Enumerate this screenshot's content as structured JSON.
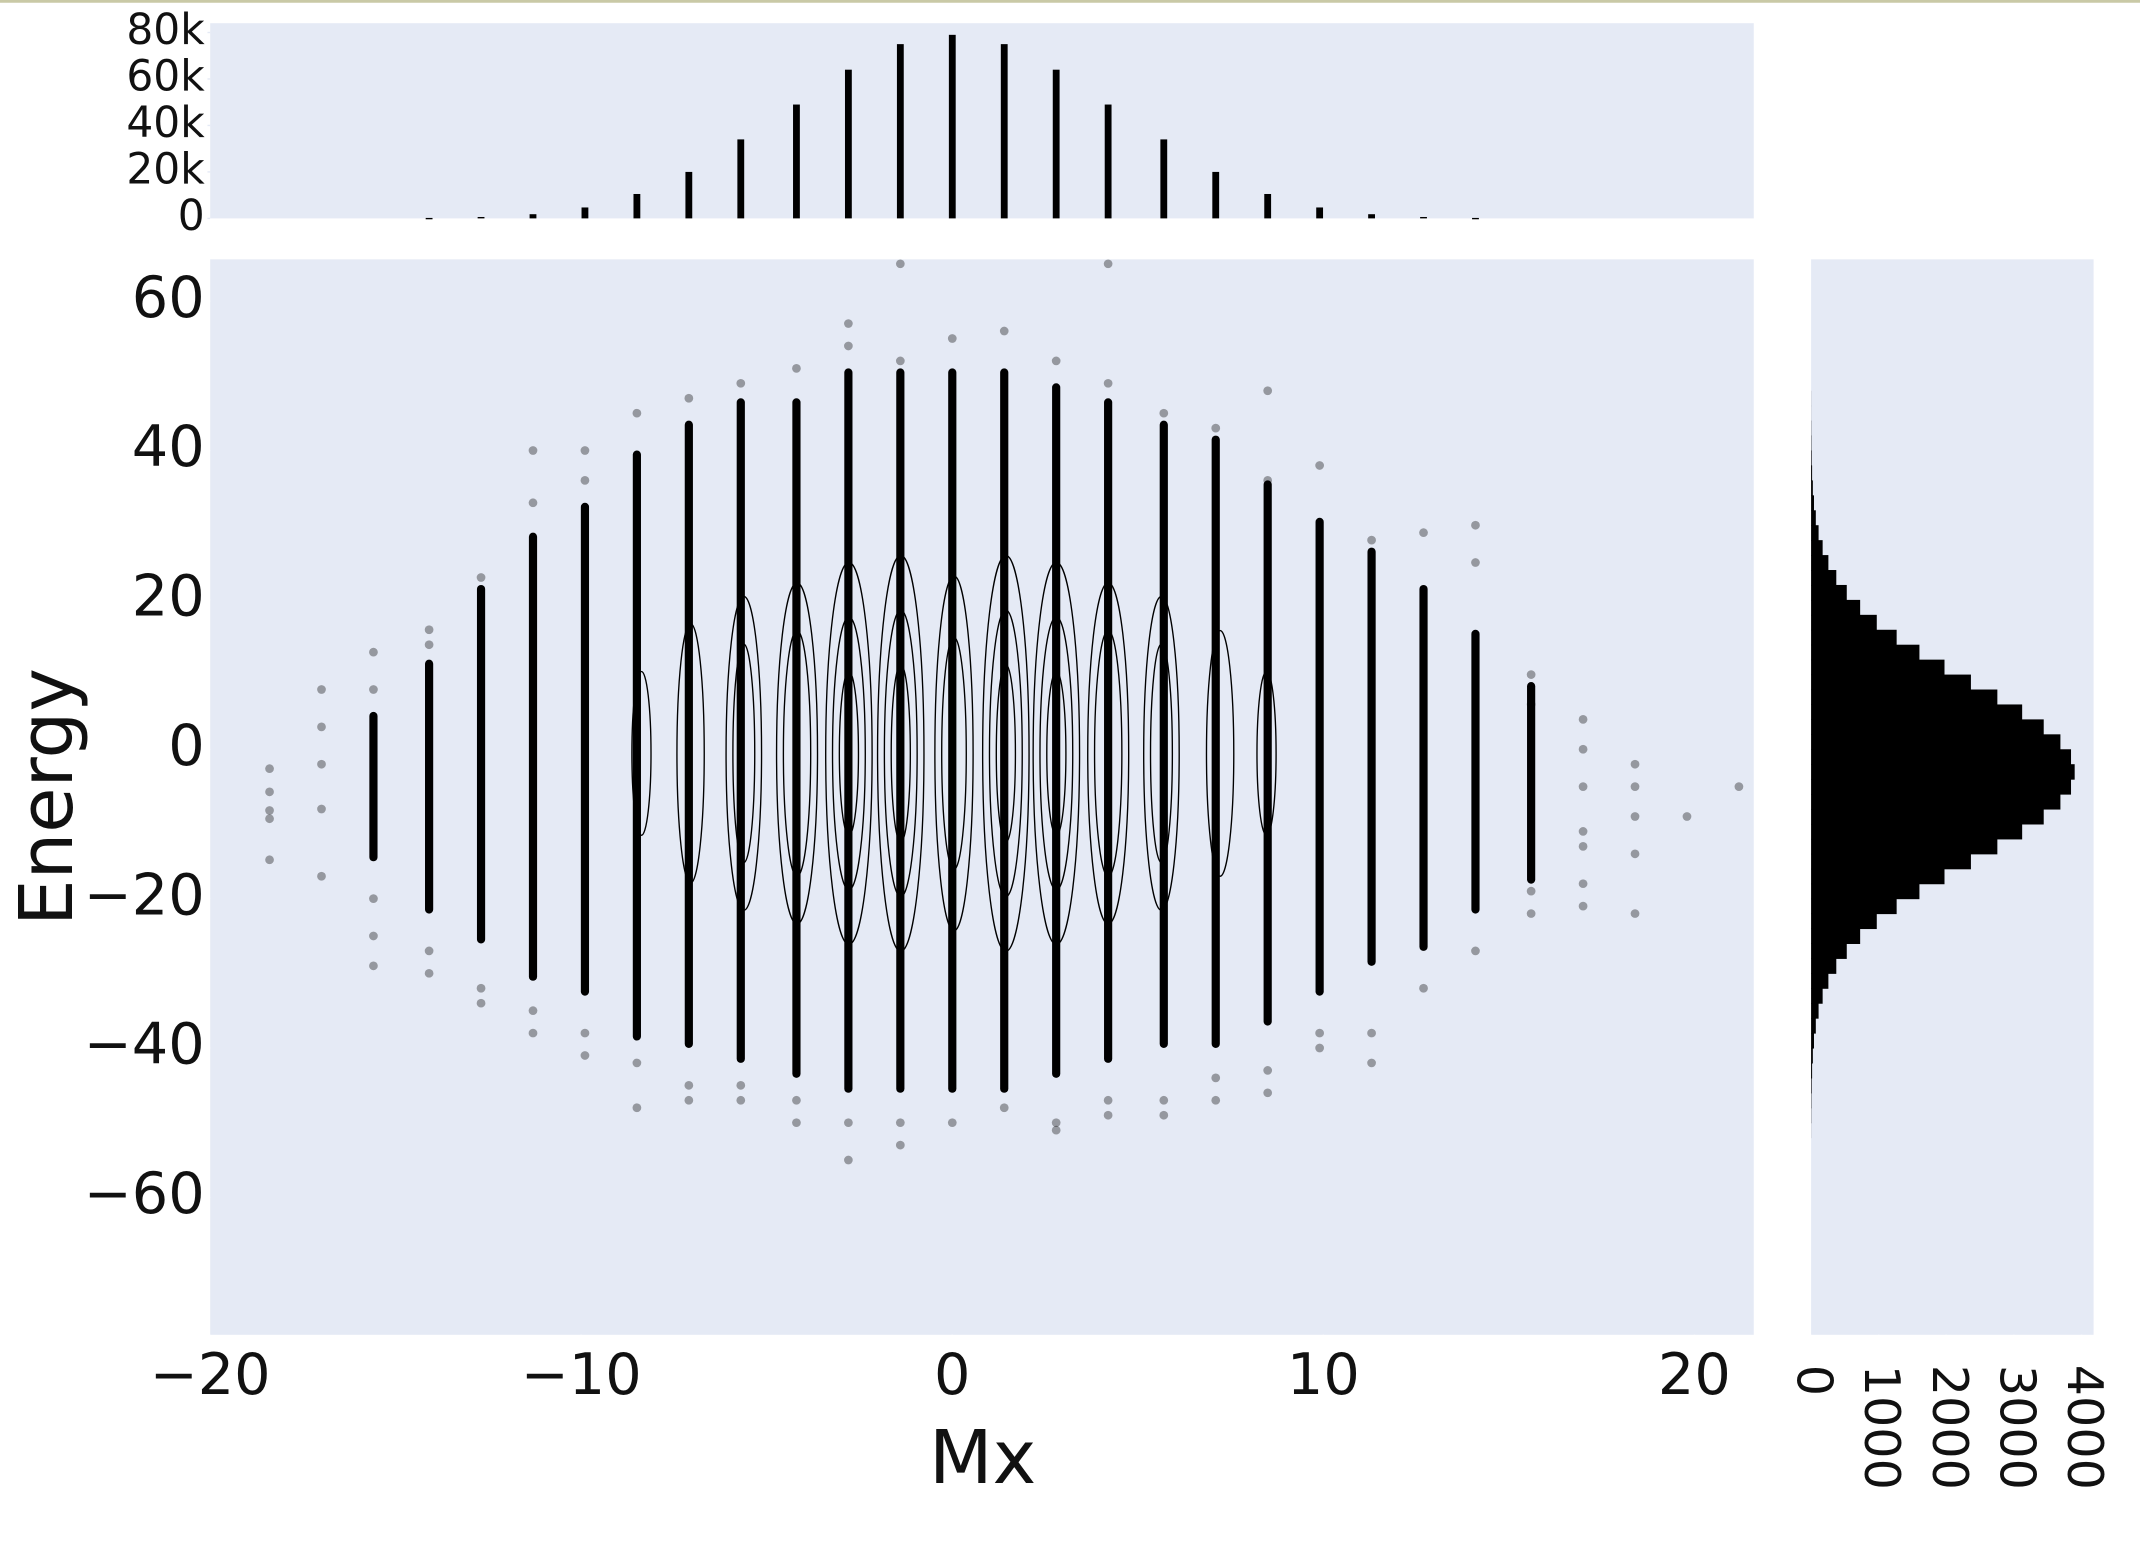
{
  "chart_data": [
    {
      "type": "bar",
      "x": [
        -14.1,
        -12.7,
        -11.3,
        -9.9,
        -8.5,
        -7.1,
        -5.7,
        -4.2,
        -2.8,
        -1.4,
        0,
        1.4,
        2.8,
        4.2,
        5.7,
        7.1,
        8.5,
        9.9,
        11.3,
        12.7,
        14.1
      ],
      "values": [
        200,
        600,
        1800,
        4700,
        10500,
        20000,
        34000,
        49000,
        64000,
        75000,
        79000,
        75000,
        64000,
        49000,
        34000,
        20000,
        10500,
        4700,
        1800,
        600,
        200
      ],
      "color": "#000000",
      "xlim": [
        -20,
        21.6
      ],
      "ylim": [
        0,
        84000
      ],
      "yticks": [
        0,
        {
          "value": 20000,
          "label": "20k"
        },
        {
          "value": 40000,
          "label": "40k"
        },
        {
          "value": 60000,
          "label": "60k"
        },
        {
          "value": 80000,
          "label": "80k"
        }
      ]
    },
    {
      "type": "scatter",
      "x_label": "Mx",
      "y_label": "Energy",
      "x": [
        -18.4,
        -18.4,
        -18.4,
        -18.4,
        -18.4,
        -17,
        -17,
        -17,
        -17,
        -17,
        -15.6,
        -15.6,
        -15.6,
        -15.6,
        -15.6,
        -14.1,
        -14.1,
        -14.1,
        -14.1,
        -12.7,
        -12.7,
        -12.7,
        -11.3,
        -11.3,
        -11.3,
        -11.3,
        -9.9,
        -9.9,
        -9.9,
        -9.9,
        -8.5,
        -8.5,
        -8.5,
        -7.1,
        -7.1,
        -7.1,
        -5.7,
        -5.7,
        -5.7,
        -4.2,
        -4.2,
        -4.2,
        -2.8,
        -2.8,
        -2.8,
        -2.8,
        -1.4,
        -1.4,
        -1.4,
        -1.4,
        0,
        0,
        1.4,
        1.4,
        2.8,
        2.8,
        2.8,
        4.2,
        4.2,
        4.2,
        4.2,
        5.7,
        5.7,
        5.7,
        7.1,
        7.1,
        7.1,
        8.5,
        8.5,
        8.5,
        8.5,
        9.9,
        9.9,
        9.9,
        11.3,
        11.3,
        11.3,
        12.7,
        12.7,
        14.1,
        14.1,
        14.1,
        15.6,
        15.6,
        15.6,
        15.6,
        17,
        17,
        17,
        17,
        17,
        17,
        17,
        18.4,
        18.4,
        18.4,
        18.4,
        18.4,
        19.8,
        21.2
      ],
      "values": [
        -2.6,
        -5.7,
        -8.2,
        -9.3,
        -14.8,
        8,
        3,
        -2,
        -8,
        -17,
        13,
        8,
        -20,
        -25,
        -29,
        16,
        14,
        -27,
        -30,
        23,
        -32,
        -34,
        40,
        33,
        -35,
        -38,
        40,
        36,
        -38,
        -41,
        45,
        -42,
        -48,
        47,
        -45,
        -47,
        49,
        -45,
        -47,
        51,
        -47,
        -50,
        57,
        54,
        -50,
        -55,
        65,
        52,
        -50,
        -53,
        55,
        -50,
        56,
        -48,
        52,
        -50,
        -51,
        65,
        49,
        -47,
        -49,
        45,
        -47,
        -49,
        43,
        -44,
        -47,
        48,
        36,
        -43,
        -46,
        38,
        -38,
        -40,
        28,
        -38,
        -42,
        29,
        -32,
        30,
        25,
        -27,
        10,
        6,
        -19,
        -22,
        4,
        0,
        -5,
        -11,
        -13,
        -18,
        -21,
        -2,
        -5,
        -9,
        -14,
        -22,
        -9,
        -5
      ],
      "strip_x": [
        -15.6,
        -14.1,
        -12.7,
        -11.3,
        -9.9,
        -8.5,
        -7.1,
        -5.7,
        -4.2,
        -2.8,
        -1.4,
        0,
        1.4,
        2.8,
        4.2,
        5.7,
        7.1,
        8.5,
        9.9,
        11.3,
        12.7,
        14.1,
        15.6
      ],
      "strip_low": [
        -15,
        -22,
        -26,
        -31,
        -33,
        -39,
        -40,
        -42,
        -44,
        -46,
        -46,
        -46,
        -46,
        -44,
        -42,
        -40,
        -40,
        -37,
        -33,
        -29,
        -27,
        -22,
        -18
      ],
      "strip_high": [
        5,
        12,
        22,
        29,
        33,
        40,
        44,
        47,
        47,
        51,
        51,
        51,
        51,
        49,
        47,
        44,
        42,
        36,
        31,
        27,
        22,
        16,
        9
      ],
      "color": "#000000",
      "xlim": [
        -20,
        21.6
      ],
      "ylim": [
        -78.4,
        65.6
      ],
      "xticks": [
        {
          "value": -20,
          "label": "−20"
        },
        {
          "value": -10,
          "label": "−10"
        },
        0,
        10,
        20
      ],
      "yticks": [
        {
          "value": -60,
          "label": "−60"
        },
        {
          "value": -40,
          "label": "−40"
        },
        {
          "value": -20,
          "label": "−20"
        },
        0,
        20,
        40,
        60
      ]
    },
    {
      "type": "histogram",
      "orientation": "horizontal",
      "bins": [
        -52,
        -50,
        -48,
        -46,
        -44,
        -42,
        -40,
        -38,
        -36,
        -34,
        -32,
        -30,
        -28,
        -26,
        -24,
        -22,
        -20,
        -18,
        -16,
        -14,
        -12,
        -10,
        -8,
        -6,
        -4,
        -2,
        0,
        2,
        4,
        6,
        8,
        10,
        12,
        14,
        16,
        18,
        20,
        22,
        24,
        26,
        28,
        30,
        32,
        34,
        36,
        38,
        40,
        42,
        44,
        46,
        48
      ],
      "values": [
        1,
        3,
        5,
        9,
        15,
        26,
        43,
        70,
        111,
        171,
        256,
        373,
        528,
        726,
        972,
        1266,
        1603,
        1974,
        2365,
        2756,
        3123,
        3442,
        3689,
        3846,
        3900,
        3846,
        3689,
        3442,
        3123,
        2756,
        2365,
        1974,
        1603,
        1266,
        972,
        726,
        528,
        373,
        256,
        171,
        111,
        70,
        43,
        26,
        15,
        9,
        5,
        3,
        1,
        1
      ],
      "color": "#000000",
      "xlim": [
        0,
        4180
      ],
      "ylim": [
        -78.4,
        65.6
      ],
      "xticks": [
        0,
        1000,
        2000,
        3000,
        4000
      ]
    }
  ]
}
